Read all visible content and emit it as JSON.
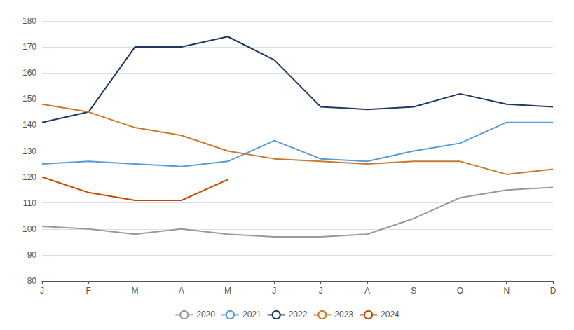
{
  "chart_data": {
    "type": "line",
    "categories": [
      "J",
      "F",
      "M",
      "A",
      "M",
      "J",
      "J",
      "A",
      "S",
      "O",
      "N",
      "D"
    ],
    "series": [
      {
        "name": "2020",
        "color": "#999999",
        "values": [
          101,
          100,
          98,
          100,
          98,
          97,
          97,
          98,
          104,
          112,
          115,
          116
        ]
      },
      {
        "name": "2021",
        "color": "#5B9BD5",
        "values": [
          125,
          126,
          125,
          124,
          126,
          134,
          127,
          126,
          130,
          133,
          141,
          141
        ]
      },
      {
        "name": "2022",
        "color": "#1F3864",
        "values": [
          141,
          145,
          170,
          170,
          174,
          165,
          147,
          146,
          147,
          152,
          148,
          147
        ]
      },
      {
        "name": "2023",
        "color": "#C87A2E",
        "values": [
          148,
          145,
          139,
          136,
          130,
          127,
          126,
          125,
          126,
          126,
          121,
          123
        ]
      },
      {
        "name": "2024",
        "color": "#C04A00",
        "values": [
          120,
          114,
          111,
          111,
          119,
          null,
          null,
          null,
          null,
          null,
          null,
          null
        ]
      }
    ],
    "ylim": [
      80,
      180
    ],
    "yticks": [
      80,
      90,
      100,
      110,
      120,
      130,
      140,
      150,
      160,
      170,
      180
    ],
    "grid": true,
    "legend": "bottom"
  }
}
